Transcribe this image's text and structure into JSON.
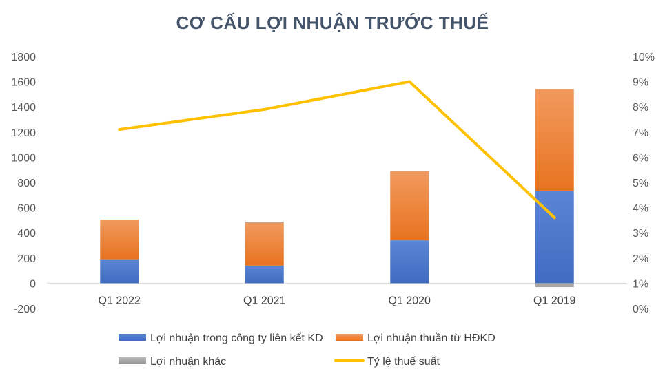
{
  "chart_data": {
    "type": "bar",
    "stacked": true,
    "title": "CƠ CẤU LỢI NHUẬN TRƯỚC THUẾ",
    "categories": [
      "Q1 2022",
      "Q1 2021",
      "Q1 2020",
      "Q1 2019"
    ],
    "series": [
      {
        "name": "Lợi nhuận trong công ty liên kết KD",
        "type": "bar",
        "axis": "left",
        "color": "#4472c4",
        "values": [
          190,
          140,
          340,
          730
        ]
      },
      {
        "name": "Lợi nhuận thuần từ HĐKD",
        "type": "bar",
        "axis": "left",
        "color": "#ed7d31",
        "values": [
          315,
          340,
          550,
          810
        ]
      },
      {
        "name": "Lợi nhuận khác",
        "type": "bar",
        "axis": "left",
        "color": "#a5a5a5",
        "values": [
          0,
          8,
          0,
          -30
        ]
      },
      {
        "name": "Tỷ lệ thuế suất",
        "type": "line",
        "axis": "right",
        "color": "#ffc000",
        "values": [
          7.1,
          7.9,
          9.0,
          3.6
        ]
      }
    ],
    "y_left": {
      "min": -200,
      "max": 1800,
      "step": 200,
      "ticks": [
        "-200",
        "0",
        "200",
        "400",
        "600",
        "800",
        "1000",
        "1200",
        "1400",
        "1600",
        "1800"
      ]
    },
    "y_right": {
      "min": 0,
      "max": 10,
      "step": 1,
      "ticks": [
        "0%",
        "1%",
        "2%",
        "3%",
        "4%",
        "5%",
        "6%",
        "7%",
        "8%",
        "9%",
        "10%"
      ]
    },
    "grid": false,
    "legend": "bottom"
  }
}
